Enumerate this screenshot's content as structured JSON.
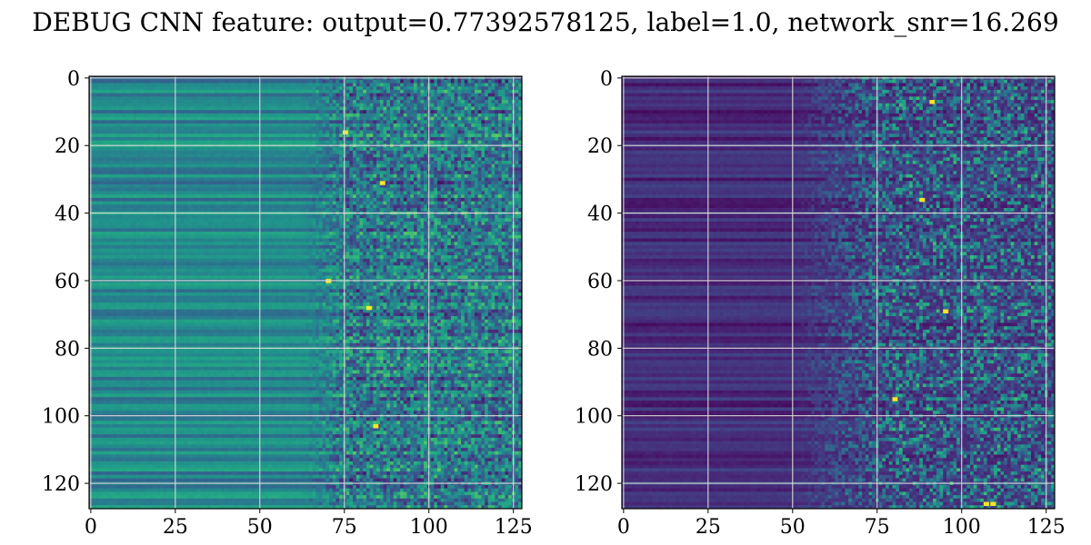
{
  "figure": {
    "suptitle": "DEBUG CNN feature: output=0.77392578125, label=1.0, network_snr=16.269"
  },
  "chart_data": [
    {
      "type": "heatmap",
      "title": "",
      "xlabel": "",
      "ylabel": "",
      "rows": 128,
      "cols": 128,
      "xlim": [
        -0.5,
        127.5
      ],
      "ylim": [
        127.5,
        -0.5
      ],
      "y_inverted": true,
      "xticks": [
        0,
        25,
        50,
        75,
        100,
        125
      ],
      "yticks": [
        0,
        20,
        40,
        60,
        80,
        100,
        120
      ],
      "grid": true,
      "colormap": "viridis",
      "pattern": "horizontal bands in columns 0-60, higher-variance noisy texture in columns 60-127",
      "bright_spots": [
        [
          84,
          103
        ],
        [
          86,
          31
        ],
        [
          82,
          68
        ],
        [
          75,
          16
        ],
        [
          70,
          60
        ]
      ]
    },
    {
      "type": "heatmap",
      "title": "",
      "xlabel": "",
      "ylabel": "",
      "rows": 128,
      "cols": 128,
      "xlim": [
        -0.5,
        127.5
      ],
      "ylim": [
        127.5,
        -0.5
      ],
      "y_inverted": true,
      "xticks": [
        0,
        25,
        50,
        75,
        100,
        125
      ],
      "yticks": [
        0,
        20,
        40,
        60,
        80,
        100,
        120
      ],
      "grid": true,
      "colormap": "viridis",
      "pattern": "dark purple bands in columns 0-50, sparse bright speckle in columns 75-127",
      "bright_spots": [
        [
          107,
          126
        ],
        [
          109,
          126
        ],
        [
          88,
          36
        ],
        [
          80,
          95
        ],
        [
          95,
          69
        ],
        [
          91,
          7
        ]
      ]
    }
  ],
  "colors": {
    "grid": "#d9d9d9",
    "axes": "#000000",
    "background": "#ffffff"
  }
}
